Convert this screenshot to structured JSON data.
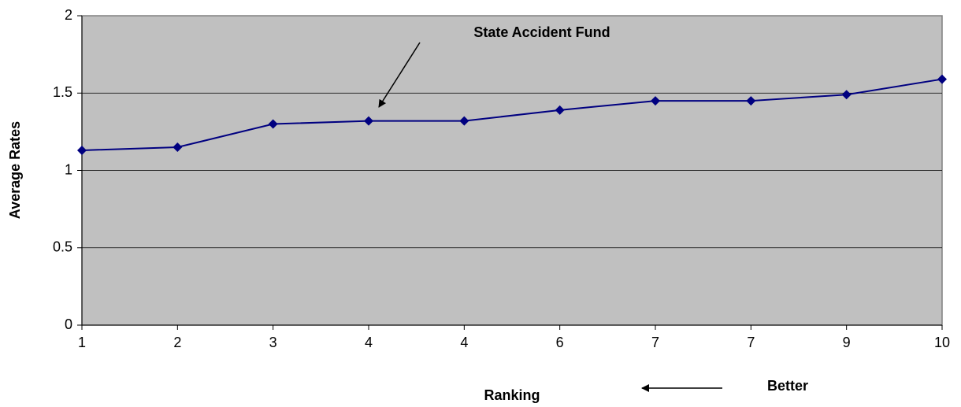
{
  "chart_data": {
    "type": "line",
    "x_label": "Ranking",
    "y_label": "Average Rates",
    "annotations": [
      "State Accident Fund",
      "Better"
    ],
    "categories": [
      "1",
      "2",
      "3",
      "4",
      "4",
      "6",
      "7",
      "7",
      "9",
      "10"
    ],
    "series": [
      {
        "name": "Average Rates",
        "color": "#000080",
        "values": [
          1.13,
          1.15,
          1.3,
          1.32,
          1.32,
          1.39,
          1.45,
          1.45,
          1.49,
          1.59
        ]
      }
    ],
    "ylim": [
      0,
      2
    ],
    "yticks": [
      0,
      0.5,
      1,
      1.5,
      2
    ],
    "grid": true
  }
}
